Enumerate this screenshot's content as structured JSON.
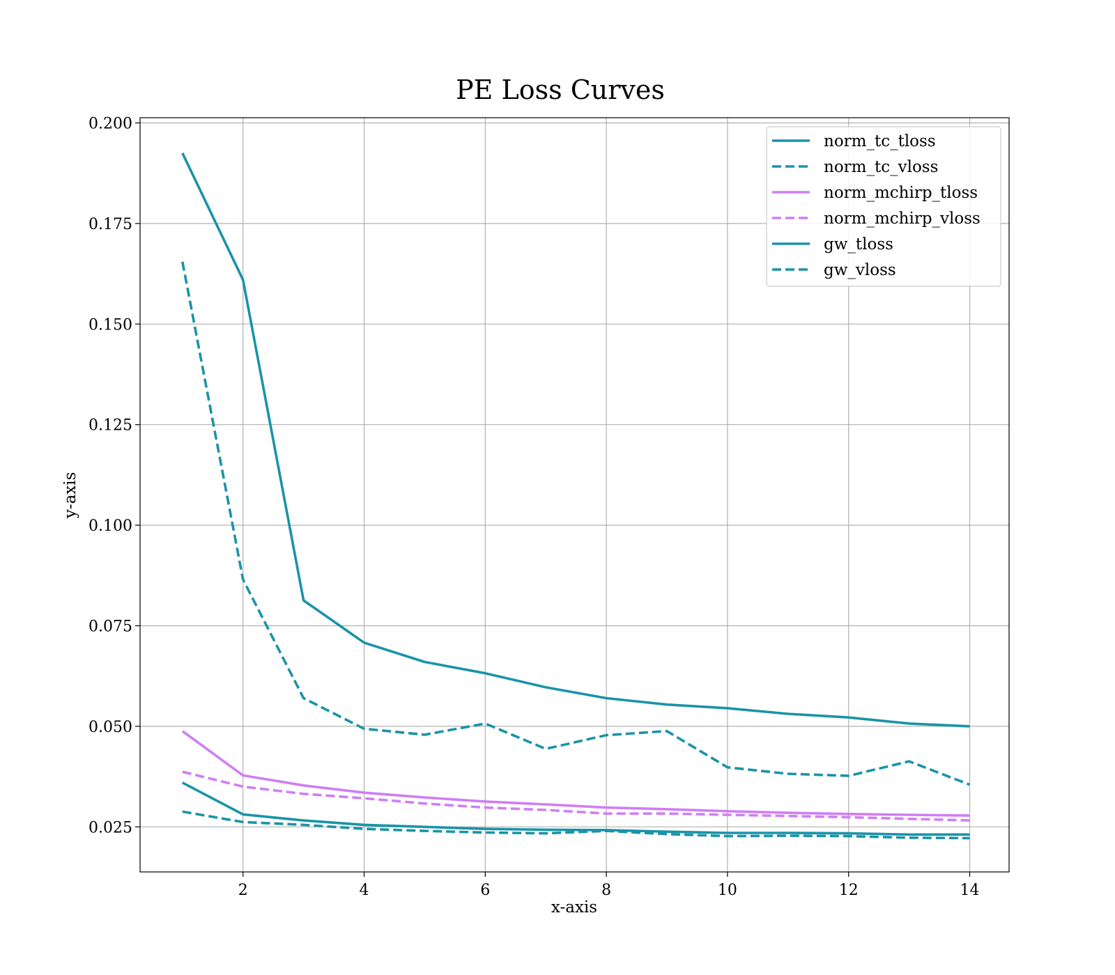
{
  "chart_data": {
    "type": "line",
    "title": "PE Loss Curves",
    "xlabel": "x-axis",
    "ylabel": "y-axis",
    "xlim": [
      0.3,
      14.65
    ],
    "ylim": [
      0.0138,
      0.2013
    ],
    "xticks": [
      2,
      4,
      6,
      8,
      10,
      12,
      14
    ],
    "yticks": [
      0.025,
      0.05,
      0.075,
      0.1,
      0.125,
      0.15,
      0.175,
      0.2
    ],
    "xtick_labels": [
      "2",
      "4",
      "6",
      "8",
      "10",
      "12",
      "14"
    ],
    "ytick_labels": [
      "0.025",
      "0.050",
      "0.075",
      "0.100",
      "0.125",
      "0.150",
      "0.175",
      "0.200"
    ],
    "grid": true,
    "legend_position": "top-right",
    "x": [
      1,
      2,
      3,
      4,
      5,
      6,
      7,
      8,
      9,
      10,
      11,
      12,
      13,
      14
    ],
    "series": [
      {
        "name": "norm_tc_tloss",
        "color": "#1a93a8",
        "dash": false,
        "values": [
          0.1925,
          0.161,
          0.0813,
          0.0708,
          0.066,
          0.0632,
          0.0597,
          0.057,
          0.0554,
          0.0545,
          0.0531,
          0.0522,
          0.0507,
          0.05
        ]
      },
      {
        "name": "norm_tc_vloss",
        "color": "#1a93a8",
        "dash": true,
        "values": [
          0.1655,
          0.0865,
          0.057,
          0.0494,
          0.0479,
          0.0507,
          0.0444,
          0.0478,
          0.0488,
          0.0398,
          0.0382,
          0.0377,
          0.0413,
          0.0355
        ]
      },
      {
        "name": "norm_mchirp_tloss",
        "color": "#cf7ef5",
        "dash": false,
        "values": [
          0.0488,
          0.0378,
          0.0353,
          0.0335,
          0.0323,
          0.0313,
          0.0306,
          0.0298,
          0.0294,
          0.0289,
          0.0285,
          0.0282,
          0.028,
          0.0278
        ]
      },
      {
        "name": "norm_mchirp_vloss",
        "color": "#cf7ef5",
        "dash": true,
        "values": [
          0.0387,
          0.035,
          0.0332,
          0.0321,
          0.0308,
          0.0298,
          0.0292,
          0.0283,
          0.0283,
          0.028,
          0.0277,
          0.0274,
          0.027,
          0.0266
        ]
      },
      {
        "name": "gw_tloss",
        "color": "#1a93a8",
        "dash": false,
        "values": [
          0.036,
          0.0281,
          0.0266,
          0.0255,
          0.025,
          0.0245,
          0.0243,
          0.0242,
          0.0238,
          0.0235,
          0.0235,
          0.0234,
          0.0231,
          0.0231
        ]
      },
      {
        "name": "gw_vloss",
        "color": "#1a93a8",
        "dash": true,
        "values": [
          0.0288,
          0.0262,
          0.0255,
          0.0245,
          0.024,
          0.0236,
          0.0234,
          0.024,
          0.0232,
          0.0227,
          0.0228,
          0.0227,
          0.0223,
          0.0222
        ]
      }
    ]
  }
}
